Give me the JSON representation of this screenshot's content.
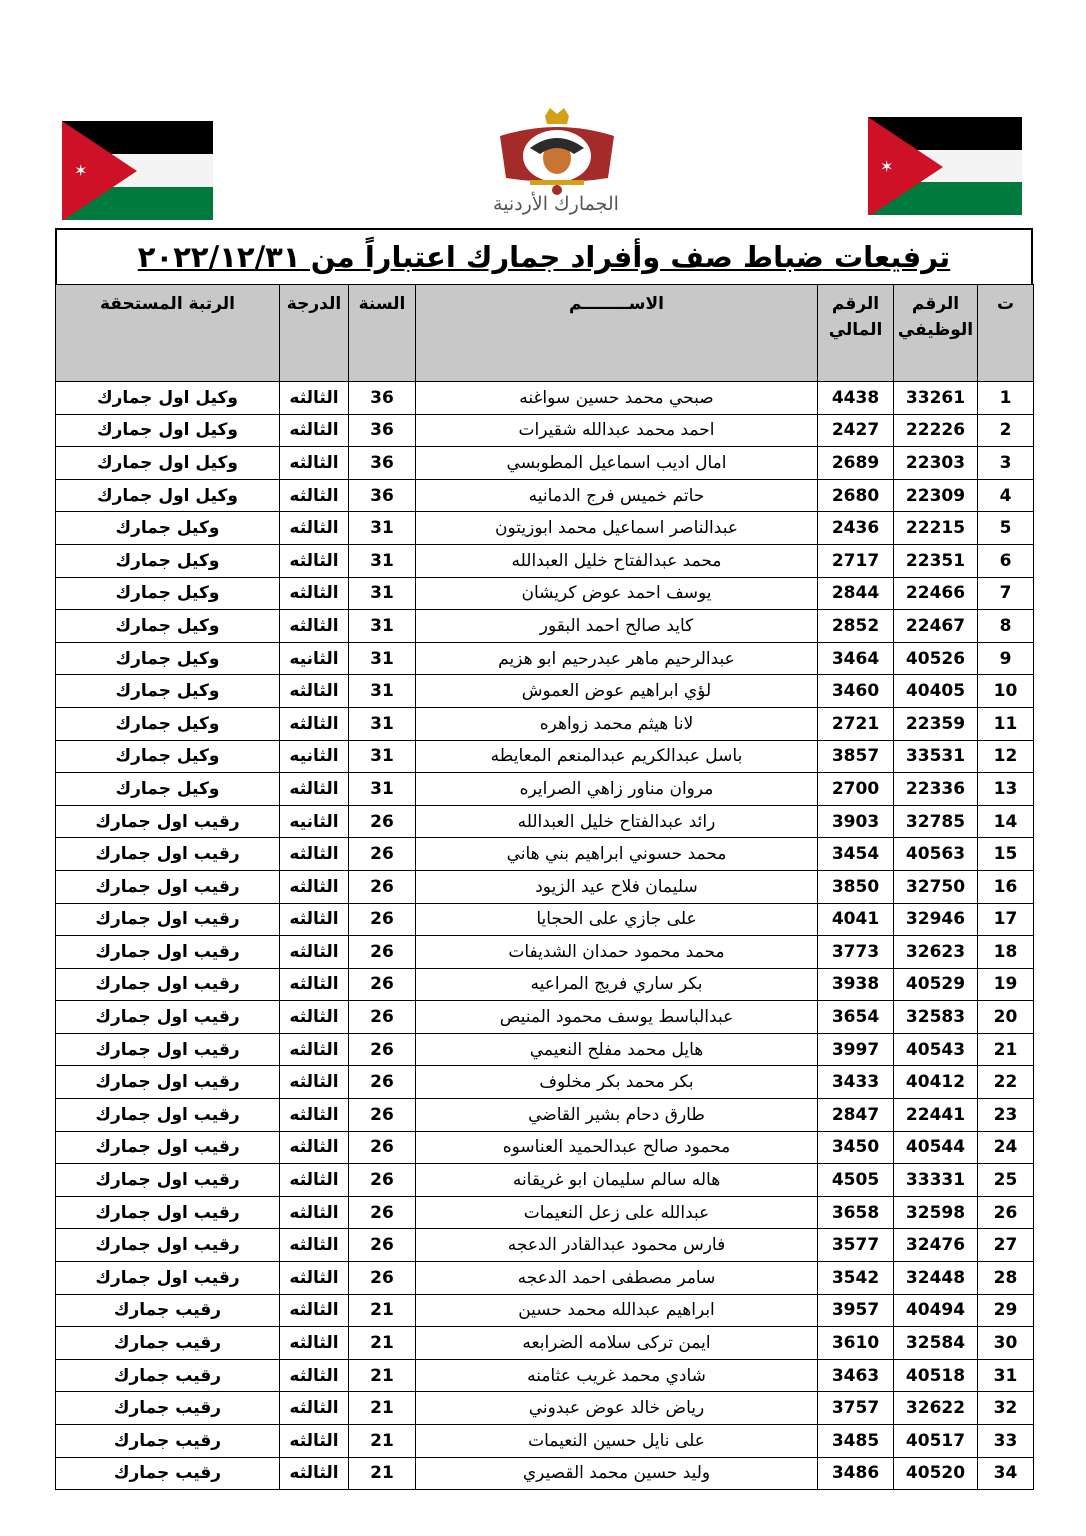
{
  "logo_text": "الجمارك الأردنية",
  "flag_colors": {
    "black": "#000000",
    "white": "#ffffff",
    "green": "#007a3d",
    "red": "#ce1126"
  },
  "title": "ترفيعات ضباط صف وأفراد جمارك اعتباراً من ٢٠٢٢/١٢/٣١",
  "headers": {
    "seq": "ت",
    "job_no": "الرقم الوظيفي",
    "fin_no": "الرقم المالي",
    "name": "الاســــــــم",
    "year": "السنة",
    "grade": "الدرجة",
    "rank": "الرتبة المستحقة"
  },
  "rows": [
    [
      "1",
      "33261",
      "4438",
      "صبحي محمد حسين سواغنه",
      "36",
      "الثالثه",
      "وكيل اول جمارك"
    ],
    [
      "2",
      "22226",
      "2427",
      "احمد محمد عبدالله شقيرات",
      "36",
      "الثالثه",
      "وكيل اول جمارك"
    ],
    [
      "3",
      "22303",
      "2689",
      "امال اديب اسماعيل المطوبسي",
      "36",
      "الثالثه",
      "وكيل اول جمارك"
    ],
    [
      "4",
      "22309",
      "2680",
      "حاتم خميس فرج الدمانيه",
      "36",
      "الثالثه",
      "وكيل اول جمارك"
    ],
    [
      "5",
      "22215",
      "2436",
      "عبدالناصر اسماعيل محمد ابوزيتون",
      "31",
      "الثالثه",
      "وكيل جمارك"
    ],
    [
      "6",
      "22351",
      "2717",
      "محمد عبدالفتاح خليل العبدالله",
      "31",
      "الثالثه",
      "وكيل جمارك"
    ],
    [
      "7",
      "22466",
      "2844",
      "يوسف احمد عوض كريشان",
      "31",
      "الثالثه",
      "وكيل جمارك"
    ],
    [
      "8",
      "22467",
      "2852",
      "كايد صالح احمد البقور",
      "31",
      "الثالثه",
      "وكيل جمارك"
    ],
    [
      "9",
      "40526",
      "3464",
      "عبدالرحيم ماهر عبدرحيم ابو هزيم",
      "31",
      "الثانيه",
      "وكيل جمارك"
    ],
    [
      "10",
      "40405",
      "3460",
      "لؤي ابراهيم عوض العموش",
      "31",
      "الثالثه",
      "وكيل جمارك"
    ],
    [
      "11",
      "22359",
      "2721",
      "لانا هيثم محمد زواهره",
      "31",
      "الثالثه",
      "وكيل جمارك"
    ],
    [
      "12",
      "33531",
      "3857",
      "باسل عبدالكريم عبدالمنعم المعايطه",
      "31",
      "الثانيه",
      "وكيل جمارك"
    ],
    [
      "13",
      "22336",
      "2700",
      "مروان مناور زاهي الصرايره",
      "31",
      "الثالثه",
      "وكيل جمارك"
    ],
    [
      "14",
      "32785",
      "3903",
      "رائد عبدالفتاح خليل العبدالله",
      "26",
      "الثانيه",
      "رقيب اول جمارك"
    ],
    [
      "15",
      "40563",
      "3454",
      "محمد حسوني ابراهيم بني هاني",
      "26",
      "الثالثه",
      "رقيب اول جمارك"
    ],
    [
      "16",
      "32750",
      "3850",
      "سليمان فلاح عيد الزيود",
      "26",
      "الثالثه",
      "رقيب اول جمارك"
    ],
    [
      "17",
      "32946",
      "4041",
      "على جازي على الحجايا",
      "26",
      "الثالثه",
      "رقيب اول جمارك"
    ],
    [
      "18",
      "32623",
      "3773",
      "محمد محمود حمدان الشديفات",
      "26",
      "الثالثه",
      "رقيب اول جمارك"
    ],
    [
      "19",
      "40529",
      "3938",
      "بكر ساري فريج المراعيه",
      "26",
      "الثالثه",
      "رقيب اول جمارك"
    ],
    [
      "20",
      "32583",
      "3654",
      "عبدالباسط يوسف محمود المنيص",
      "26",
      "الثالثه",
      "رقيب اول جمارك"
    ],
    [
      "21",
      "40543",
      "3997",
      "هايل محمد مفلح النعيمي",
      "26",
      "الثالثه",
      "رقيب اول جمارك"
    ],
    [
      "22",
      "40412",
      "3433",
      "بكر محمد بكر مخلوف",
      "26",
      "الثالثه",
      "رقيب اول جمارك"
    ],
    [
      "23",
      "22441",
      "2847",
      "طارق دحام بشير القاضي",
      "26",
      "الثالثه",
      "رقيب اول جمارك"
    ],
    [
      "24",
      "40544",
      "3450",
      "محمود صالح عبدالحميد العناسوه",
      "26",
      "الثالثه",
      "رقيب اول جمارك"
    ],
    [
      "25",
      "33331",
      "4505",
      "هاله سالم سليمان ابو غريقانه",
      "26",
      "الثالثه",
      "رقيب اول جمارك"
    ],
    [
      "26",
      "32598",
      "3658",
      "عبدالله على زعل النعيمات",
      "26",
      "الثالثه",
      "رقيب اول جمارك"
    ],
    [
      "27",
      "32476",
      "3577",
      "فارس محمود عبدالقادر الدعجه",
      "26",
      "الثالثه",
      "رقيب اول جمارك"
    ],
    [
      "28",
      "32448",
      "3542",
      "سامر مصطفى احمد الدعجه",
      "26",
      "الثالثه",
      "رقيب اول جمارك"
    ],
    [
      "29",
      "40494",
      "3957",
      "ابراهيم عبدالله محمد حسين",
      "21",
      "الثالثه",
      "رقيب جمارك"
    ],
    [
      "30",
      "32584",
      "3610",
      "ايمن تركى سلامه الضرابعه",
      "21",
      "الثالثه",
      "رقيب جمارك"
    ],
    [
      "31",
      "40518",
      "3463",
      "شادي محمد غريب عثامنه",
      "21",
      "الثالثه",
      "رقيب جمارك"
    ],
    [
      "32",
      "32622",
      "3757",
      "رياض خالد عوض عبدوني",
      "21",
      "الثالثه",
      "رقيب جمارك"
    ],
    [
      "33",
      "40517",
      "3485",
      "على نايل حسين النعيمات",
      "21",
      "الثالثه",
      "رقيب جمارك"
    ],
    [
      "34",
      "40520",
      "3486",
      "وليد حسين محمد القصيري",
      "21",
      "الثالثه",
      "رقيب جمارك"
    ]
  ]
}
